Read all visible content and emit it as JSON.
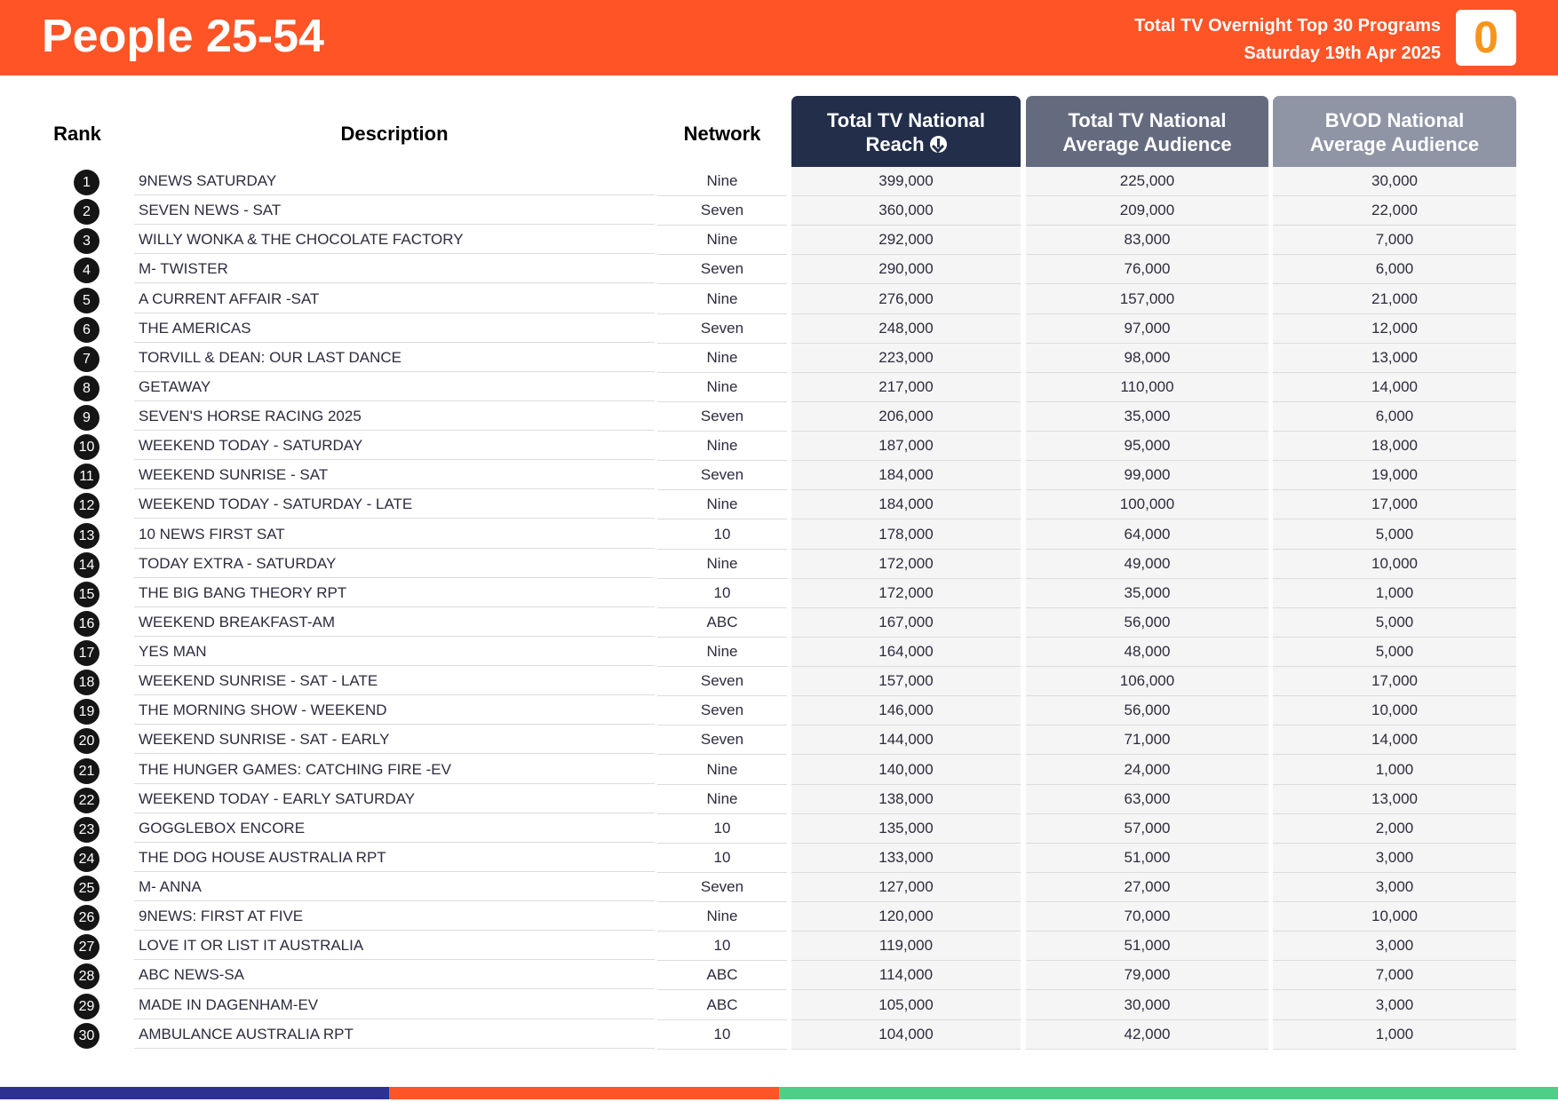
{
  "header": {
    "title": "People 25-54",
    "subtitle_line1": "Total TV Overnight Top 30 Programs",
    "subtitle_line2": "Saturday 19th Apr 2025",
    "logo_text": "0"
  },
  "columns": {
    "rank": "Rank",
    "description": "Description",
    "network": "Network",
    "reach_line1": "Total TV National",
    "reach_line2": "Reach",
    "avg_line1": "Total TV National",
    "avg_line2": "Average Audience",
    "bvod_line1": "BVOD National",
    "bvod_line2": "Average Audience"
  },
  "sort_icon": "arrow-down-circle-icon",
  "colors": {
    "header_orange": "#ff5426",
    "reach_header": "#222e4a",
    "avg_header": "#656b7f",
    "bvod_header": "#8f95a5",
    "bar_blue": "#2e3191",
    "bar_orange": "#ff5426",
    "bar_green": "#4dcf87"
  },
  "rows": [
    {
      "rank": "1",
      "description": "9NEWS SATURDAY",
      "network": "Nine",
      "reach": "399,000",
      "avg": "225,000",
      "bvod": "30,000"
    },
    {
      "rank": "2",
      "description": "SEVEN NEWS - SAT",
      "network": "Seven",
      "reach": "360,000",
      "avg": "209,000",
      "bvod": "22,000"
    },
    {
      "rank": "3",
      "description": "WILLY WONKA & THE CHOCOLATE FACTORY",
      "network": "Nine",
      "reach": "292,000",
      "avg": "83,000",
      "bvod": "7,000"
    },
    {
      "rank": "4",
      "description": "M- TWISTER",
      "network": "Seven",
      "reach": "290,000",
      "avg": "76,000",
      "bvod": "6,000"
    },
    {
      "rank": "5",
      "description": "A CURRENT AFFAIR -SAT",
      "network": "Nine",
      "reach": "276,000",
      "avg": "157,000",
      "bvod": "21,000"
    },
    {
      "rank": "6",
      "description": "THE AMERICAS",
      "network": "Seven",
      "reach": "248,000",
      "avg": "97,000",
      "bvod": "12,000"
    },
    {
      "rank": "7",
      "description": "TORVILL & DEAN: OUR LAST DANCE",
      "network": "Nine",
      "reach": "223,000",
      "avg": "98,000",
      "bvod": "13,000"
    },
    {
      "rank": "8",
      "description": "GETAWAY",
      "network": "Nine",
      "reach": "217,000",
      "avg": "110,000",
      "bvod": "14,000"
    },
    {
      "rank": "9",
      "description": "SEVEN'S HORSE RACING 2025",
      "network": "Seven",
      "reach": "206,000",
      "avg": "35,000",
      "bvod": "6,000"
    },
    {
      "rank": "10",
      "description": "WEEKEND TODAY - SATURDAY",
      "network": "Nine",
      "reach": "187,000",
      "avg": "95,000",
      "bvod": "18,000"
    },
    {
      "rank": "11",
      "description": "WEEKEND SUNRISE - SAT",
      "network": "Seven",
      "reach": "184,000",
      "avg": "99,000",
      "bvod": "19,000"
    },
    {
      "rank": "12",
      "description": "WEEKEND TODAY - SATURDAY - LATE",
      "network": "Nine",
      "reach": "184,000",
      "avg": "100,000",
      "bvod": "17,000"
    },
    {
      "rank": "13",
      "description": "10 NEWS FIRST SAT",
      "network": "10",
      "reach": "178,000",
      "avg": "64,000",
      "bvod": "5,000"
    },
    {
      "rank": "14",
      "description": "TODAY EXTRA - SATURDAY",
      "network": "Nine",
      "reach": "172,000",
      "avg": "49,000",
      "bvod": "10,000"
    },
    {
      "rank": "15",
      "description": "THE BIG BANG THEORY RPT",
      "network": "10",
      "reach": "172,000",
      "avg": "35,000",
      "bvod": "1,000"
    },
    {
      "rank": "16",
      "description": "WEEKEND BREAKFAST-AM",
      "network": "ABC",
      "reach": "167,000",
      "avg": "56,000",
      "bvod": "5,000"
    },
    {
      "rank": "17",
      "description": "YES MAN",
      "network": "Nine",
      "reach": "164,000",
      "avg": "48,000",
      "bvod": "5,000"
    },
    {
      "rank": "18",
      "description": "WEEKEND SUNRISE - SAT - LATE",
      "network": "Seven",
      "reach": "157,000",
      "avg": "106,000",
      "bvod": "17,000"
    },
    {
      "rank": "19",
      "description": "THE MORNING SHOW - WEEKEND",
      "network": "Seven",
      "reach": "146,000",
      "avg": "56,000",
      "bvod": "10,000"
    },
    {
      "rank": "20",
      "description": "WEEKEND SUNRISE - SAT - EARLY",
      "network": "Seven",
      "reach": "144,000",
      "avg": "71,000",
      "bvod": "14,000"
    },
    {
      "rank": "21",
      "description": "THE HUNGER GAMES: CATCHING FIRE -EV",
      "network": "Nine",
      "reach": "140,000",
      "avg": "24,000",
      "bvod": "1,000"
    },
    {
      "rank": "22",
      "description": "WEEKEND TODAY - EARLY SATURDAY",
      "network": "Nine",
      "reach": "138,000",
      "avg": "63,000",
      "bvod": "13,000"
    },
    {
      "rank": "23",
      "description": "GOGGLEBOX ENCORE",
      "network": "10",
      "reach": "135,000",
      "avg": "57,000",
      "bvod": "2,000"
    },
    {
      "rank": "24",
      "description": "THE DOG HOUSE AUSTRALIA RPT",
      "network": "10",
      "reach": "133,000",
      "avg": "51,000",
      "bvod": "3,000"
    },
    {
      "rank": "25",
      "description": "M- ANNA",
      "network": "Seven",
      "reach": "127,000",
      "avg": "27,000",
      "bvod": "3,000"
    },
    {
      "rank": "26",
      "description": "9NEWS: FIRST AT FIVE",
      "network": "Nine",
      "reach": "120,000",
      "avg": "70,000",
      "bvod": "10,000"
    },
    {
      "rank": "27",
      "description": "LOVE IT OR LIST IT AUSTRALIA",
      "network": "10",
      "reach": "119,000",
      "avg": "51,000",
      "bvod": "3,000"
    },
    {
      "rank": "28",
      "description": "ABC NEWS-SA",
      "network": "ABC",
      "reach": "114,000",
      "avg": "79,000",
      "bvod": "7,000"
    },
    {
      "rank": "29",
      "description": "MADE IN DAGENHAM-EV",
      "network": "ABC",
      "reach": "105,000",
      "avg": "30,000",
      "bvod": "3,000"
    },
    {
      "rank": "30",
      "description": "AMBULANCE AUSTRALIA RPT",
      "network": "10",
      "reach": "104,000",
      "avg": "42,000",
      "bvod": "1,000"
    }
  ]
}
